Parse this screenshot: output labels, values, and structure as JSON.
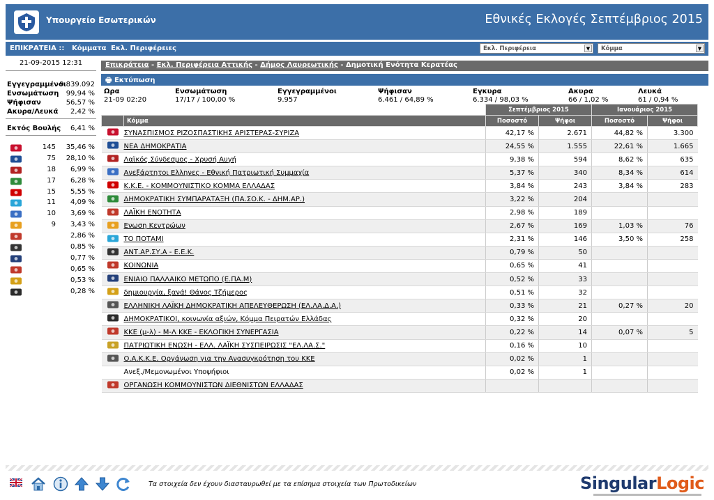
{
  "header": {
    "ministry": "Υπουργείο Εσωτερικών",
    "title": "Εθνικές Εκλογές Σεπτέμβριος 2015"
  },
  "nav": {
    "territory": "ΕΠΙΚΡΑΤΕΙΑ ::",
    "parties": "Κόμματα",
    "regions": "Εκλ. Περιφέρειες",
    "region_select": "Εκλ. Περιφέρεια",
    "party_select": "Κόμμα"
  },
  "left": {
    "datetime": "21-09-2015 12:31",
    "registered_label": "Εγγεγραμμένοι",
    "registered_value": "9.839.092",
    "integration_label": "Ενσωμάτωση",
    "integration_value": "99,94 %",
    "voted_label": "Ψήφισαν",
    "voted_value": "56,57 %",
    "invalid_label": "Ακυρα/Λευκά",
    "invalid_value": "2,42 %",
    "outside_label": "Εκτός Βουλής",
    "outside_value": "6,41 %",
    "parties": [
      {
        "icon": "syriza-logo",
        "seats": "145",
        "pct": "35,46 %",
        "color": "#c8102e"
      },
      {
        "icon": "nd-logo",
        "seats": "75",
        "pct": "28,10 %",
        "color": "#1f4f96"
      },
      {
        "icon": "xa-logo",
        "seats": "18",
        "pct": "6,99 %",
        "color": "#b22222"
      },
      {
        "icon": "pasok-logo",
        "seats": "17",
        "pct": "6,28 %",
        "color": "#2e8b3a"
      },
      {
        "icon": "kke-logo",
        "seats": "15",
        "pct": "5,55 %",
        "color": "#d00000"
      },
      {
        "icon": "potami-logo",
        "seats": "11",
        "pct": "4,09 %",
        "color": "#2aa6d8"
      },
      {
        "icon": "anel-logo",
        "seats": "10",
        "pct": "3,69 %",
        "color": "#3a6fc4"
      },
      {
        "icon": "kentroon-logo",
        "seats": "9",
        "pct": "3,43 %",
        "color": "#e8a020"
      },
      {
        "icon": "le-logo",
        "seats": "",
        "pct": "2,86 %",
        "color": "#c0392b"
      },
      {
        "icon": "antarsya-logo",
        "seats": "",
        "pct": "0,85 %",
        "color": "#333333"
      },
      {
        "icon": "epam-logo",
        "seats": "",
        "pct": "0,77 %",
        "color": "#24407a"
      },
      {
        "icon": "koinonia-logo",
        "seats": "",
        "pct": "0,65 %",
        "color": "#c0392b"
      },
      {
        "icon": "dimiourgia-logo",
        "seats": "",
        "pct": "0,53 %",
        "color": "#d4a017"
      },
      {
        "icon": "adp-logo",
        "seats": "",
        "pct": "0,28 %",
        "color": "#2b2b2b"
      }
    ]
  },
  "main": {
    "breadcrumb": {
      "l1": "Επικράτεια",
      "sep": " - ",
      "l2": "Εκλ. Περιφέρεια Αττικής",
      "l3": "Δήμος Λαυρεωτικής",
      "current": "Δημοτική Ενότητα Κερατέας"
    },
    "print": "Εκτύπωση",
    "summary": {
      "h_time": "Ωρα",
      "time": "21-09 02:20",
      "h_integration": "Ενσωμάτωση",
      "integration": "17/17 / 100,00 %",
      "h_registered": "Εγγεγραμμένοι",
      "registered": "9.957",
      "h_voted": "Ψήφισαν",
      "voted": "6.461 / 64,89 %",
      "h_valid": "Εγκυρα",
      "valid": "6.334 / 98,03 %",
      "h_invalid": "Ακυρα",
      "invalid": "66 / 1,02 %",
      "h_blank": "Λευκά",
      "blank": "61 / 0,94 %"
    },
    "table": {
      "sep2015": "Σεπτέμβριος 2015",
      "jan2015": "Ιανουάριος 2015",
      "col_party": "Κόμμα",
      "col_pct": "Ποσοστό",
      "col_votes": "Ψήφοι",
      "rows": [
        {
          "icon": "syriza-logo",
          "name": "ΣΥΝΑΣΠΙΣΜΟΣ ΡΙΖΟΣΠΑΣΤΙΚΗΣ ΑΡΙΣΤΕΡΑΣ-ΣΥΡΙΖΑ",
          "pct": "42,17 %",
          "votes": "2.671",
          "jpct": "44,82 %",
          "jvotes": "3.300",
          "color": "#c8102e"
        },
        {
          "icon": "nd-logo",
          "name": "ΝΕΑ ΔΗΜΟΚΡΑΤΙΑ",
          "pct": "24,55 %",
          "votes": "1.555",
          "jpct": "22,61 %",
          "jvotes": "1.665",
          "color": "#1f4f96"
        },
        {
          "icon": "xa-logo",
          "name": "Λαϊκός Σύνδεσμος - Χρυσή Αυγή",
          "pct": "9,38 %",
          "votes": "594",
          "jpct": "8,62 %",
          "jvotes": "635",
          "color": "#b22222"
        },
        {
          "icon": "anel-logo",
          "name": "Ανεξάρτητοι Ελληνες - Εθνική Πατριωτική Συμμαχία",
          "pct": "5,37 %",
          "votes": "340",
          "jpct": "8,34 %",
          "jvotes": "614",
          "color": "#3a6fc4"
        },
        {
          "icon": "kke-logo",
          "name": "Κ.Κ.Ε. - ΚΟΜΜΟΥΝΙΣΤΙΚΟ ΚΟΜΜΑ ΕΛΛΑΔΑΣ",
          "pct": "3,84 %",
          "votes": "243",
          "jpct": "3,84 %",
          "jvotes": "283",
          "color": "#d00000"
        },
        {
          "icon": "pasok-logo",
          "name": "ΔΗΜΟΚΡΑΤΙΚΗ ΣΥΜΠΑΡΑΤΑΞΗ (ΠΑ.ΣΟ.Κ. - ΔΗΜ.ΑΡ.)",
          "pct": "3,22 %",
          "votes": "204",
          "jpct": "",
          "jvotes": "",
          "color": "#2e8b3a"
        },
        {
          "icon": "le-logo",
          "name": "ΛΑΪΚΗ ΕΝΟΤΗΤΑ",
          "pct": "2,98 %",
          "votes": "189",
          "jpct": "",
          "jvotes": "",
          "color": "#c0392b"
        },
        {
          "icon": "kentroon-logo",
          "name": "Ενωση Κεντρώων",
          "pct": "2,67 %",
          "votes": "169",
          "jpct": "1,03 %",
          "jvotes": "76",
          "color": "#e8a020"
        },
        {
          "icon": "potami-logo",
          "name": "ΤΟ ΠΟΤΑΜΙ",
          "pct": "2,31 %",
          "votes": "146",
          "jpct": "3,50 %",
          "jvotes": "258",
          "color": "#2aa6d8"
        },
        {
          "icon": "antarsya-logo",
          "name": "ΑΝΤ.ΑΡ.ΣΥ.Α - Ε.Ε.Κ.",
          "pct": "0,79 %",
          "votes": "50",
          "jpct": "",
          "jvotes": "",
          "color": "#333333"
        },
        {
          "icon": "koinonia-logo",
          "name": "ΚΟΙΝΩΝΙΑ",
          "pct": "0,65 %",
          "votes": "41",
          "jpct": "",
          "jvotes": "",
          "color": "#c0392b"
        },
        {
          "icon": "epam-logo",
          "name": "ΕΝΙΑΙΟ ΠΑΛΛΑΙΚΟ ΜΕΤΩΠΟ (Ε.ΠΑ.Μ)",
          "pct": "0,52 %",
          "votes": "33",
          "jpct": "",
          "jvotes": "",
          "color": "#24407a"
        },
        {
          "icon": "dimiourgia-logo",
          "name": "δημιουργία, ξανά! Θάνος Τζήμερος",
          "pct": "0,51 %",
          "votes": "32",
          "jpct": "",
          "jvotes": "",
          "color": "#d4a017"
        },
        {
          "icon": "elada-logo",
          "name": "ΕΛΛΗΝΙΚΗ ΛΑΪΚΗ ΔΗΜΟΚΡΑΤΙΚΗ ΑΠΕΛΕΥΘΕΡΩΣΗ (ΕΛ.ΛΑ.Δ.Α.)",
          "pct": "0,33 %",
          "votes": "21",
          "jpct": "0,27 %",
          "jvotes": "20",
          "color": "#555555"
        },
        {
          "icon": "adp-logo",
          "name": "ΔΗΜΟΚΡΑΤΙΚΟΙ, κοινωνία αξιών, Κόμμα Πειρατών Ελλάδας",
          "pct": "0,32 %",
          "votes": "20",
          "jpct": "",
          "jvotes": "",
          "color": "#2b2b2b"
        },
        {
          "icon": "kke-ml-logo",
          "name": "ΚΚΕ (μ-λ) - Μ-Λ ΚΚΕ - ΕΚΛΟΓΙΚΗ ΣΥΝΕΡΓΑΣΙΑ",
          "pct": "0,22 %",
          "votes": "14",
          "jpct": "0,07 %",
          "jvotes": "5",
          "color": "#c0392b"
        },
        {
          "icon": "elas-logo",
          "name": "ΠΑΤΡΙΩΤΙΚΗ ΕΝΩΣΗ - ΕΛΛ. ΛΑΪΚΗ ΣΥΣΠΕΙΡΩΣΙΣ \"ΕΛ.ΛΑ.Σ.\"",
          "pct": "0,16 %",
          "votes": "10",
          "jpct": "",
          "jvotes": "",
          "color": "#c9a227"
        },
        {
          "icon": "oakke-logo",
          "name": "Ο.Α.Κ.Κ.Ε. Οργάνωση για την Ανασυγκρότηση του ΚΚΕ",
          "pct": "0,02 %",
          "votes": "1",
          "jpct": "",
          "jvotes": "",
          "color": "#555555"
        },
        {
          "icon": "",
          "name": "Ανεξ./Μεμονωμένοι Υποψήφιοι",
          "pct": "0,02 %",
          "votes": "1",
          "jpct": "",
          "jvotes": "",
          "color": "#ffffff",
          "plain": true
        },
        {
          "icon": "okde-logo",
          "name": "ΟΡΓΑΝΩΣΗ ΚΟΜΜΟΥΝΙΣΤΩΝ ΔΙΕΘΝΙΣΤΩΝ ΕΛΛΑΔΑΣ",
          "pct": "",
          "votes": "",
          "jpct": "",
          "jvotes": "",
          "color": "#c0392b"
        }
      ]
    }
  },
  "footer": {
    "disclaimer": "Τα στοιχεία δεν έχουν διασταυρωθεί με τα επίσημα στοιχεία των Πρωτοδικείων",
    "brand1": "Singular",
    "brand2": "Logic"
  }
}
